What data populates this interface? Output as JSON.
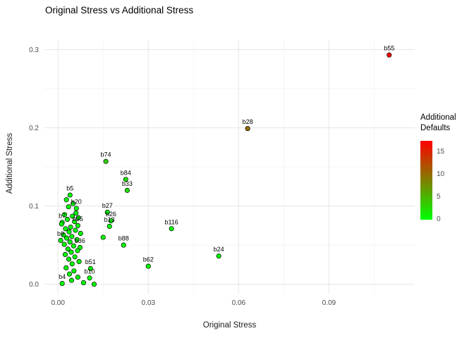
{
  "chart_data": {
    "type": "scatter",
    "title": "Original Stress vs Additional Stress",
    "xlabel": "Original Stress",
    "ylabel": "Additional Stress",
    "xlim": [
      -0.0045,
      0.1185
    ],
    "ylim": [
      -0.012,
      0.312
    ],
    "x_ticks": [
      0,
      0.03,
      0.06,
      0.09
    ],
    "x_tick_labels": [
      "0.00",
      "0.03",
      "0.06",
      "0.09"
    ],
    "x_minor": [
      0.015,
      0.045,
      0.075,
      0.105
    ],
    "y_ticks": [
      0,
      0.1,
      0.2,
      0.3
    ],
    "y_tick_labels": [
      "0.0",
      "0.1",
      "0.2",
      "0.3"
    ],
    "y_minor": [
      0.05,
      0.15,
      0.25
    ],
    "grid": true,
    "legend": {
      "title": "Additional\nDefaults",
      "ticks": [
        0,
        5,
        10,
        15
      ],
      "min": 0,
      "max": 17.5,
      "low_color": "#00FF00",
      "high_color": "#FF0000",
      "position": "right"
    },
    "points": [
      {
        "label": "b55",
        "x": 0.11,
        "y": 0.293,
        "defaults": 17
      },
      {
        "label": "b28",
        "x": 0.063,
        "y": 0.199,
        "defaults": 10
      },
      {
        "label": "b74",
        "x": 0.0159,
        "y": 0.157,
        "defaults": 3
      },
      {
        "label": "b84",
        "x": 0.0225,
        "y": 0.134,
        "defaults": 2
      },
      {
        "label": "b33",
        "x": 0.023,
        "y": 0.12,
        "defaults": 2
      },
      {
        "label": "b5",
        "x": 0.004,
        "y": 0.114,
        "defaults": 0
      },
      {
        "label": "b20",
        "x": 0.0061,
        "y": 0.097,
        "defaults": 0
      },
      {
        "label": "b27",
        "x": 0.0164,
        "y": 0.092,
        "defaults": 0
      },
      {
        "label": "b26",
        "x": 0.0176,
        "y": 0.081,
        "defaults": 0
      },
      {
        "label": "b13",
        "x": 0.0171,
        "y": 0.074,
        "defaults": 0
      },
      {
        "label": "b95",
        "x": 0.0066,
        "y": 0.075,
        "defaults": 0
      },
      {
        "label": "b7",
        "x": 0.0014,
        "y": 0.079,
        "defaults": 0
      },
      {
        "label": "b9",
        "x": 0.0009,
        "y": 0.056,
        "defaults": 0
      },
      {
        "label": "b36",
        "x": 0.0073,
        "y": 0.047,
        "defaults": 0
      },
      {
        "label": "b88",
        "x": 0.0218,
        "y": 0.05,
        "defaults": 0
      },
      {
        "label": "b116",
        "x": 0.0377,
        "y": 0.071,
        "defaults": 0
      },
      {
        "label": "b24",
        "x": 0.0534,
        "y": 0.036,
        "defaults": 0
      },
      {
        "label": "b62",
        "x": 0.03,
        "y": 0.023,
        "defaults": 0
      },
      {
        "label": "b51",
        "x": 0.0108,
        "y": 0.02,
        "defaults": 0
      },
      {
        "label": "b10",
        "x": 0.0105,
        "y": 0.008,
        "defaults": 0
      },
      {
        "label": "b4",
        "x": 0.0014,
        "y": 0.001,
        "defaults": 0
      },
      {
        "label": "",
        "x": 0.0028,
        "y": 0.108,
        "defaults": 0
      },
      {
        "label": "",
        "x": 0.005,
        "y": 0.103,
        "defaults": 0
      },
      {
        "label": "",
        "x": 0.0035,
        "y": 0.099,
        "defaults": 0
      },
      {
        "label": "",
        "x": 0.006,
        "y": 0.091,
        "defaults": 0
      },
      {
        "label": "",
        "x": 0.0022,
        "y": 0.089,
        "defaults": 0
      },
      {
        "label": "",
        "x": 0.0048,
        "y": 0.087,
        "defaults": 0
      },
      {
        "label": "",
        "x": 0.0068,
        "y": 0.085,
        "defaults": 0
      },
      {
        "label": "",
        "x": 0.0031,
        "y": 0.083,
        "defaults": 0
      },
      {
        "label": "",
        "x": 0.0055,
        "y": 0.08,
        "defaults": 0
      },
      {
        "label": "",
        "x": 0.0012,
        "y": 0.077,
        "defaults": 0
      },
      {
        "label": "",
        "x": 0.0042,
        "y": 0.073,
        "defaults": 0
      },
      {
        "label": "",
        "x": 0.0025,
        "y": 0.071,
        "defaults": 0
      },
      {
        "label": "",
        "x": 0.0058,
        "y": 0.069,
        "defaults": 0
      },
      {
        "label": "",
        "x": 0.0037,
        "y": 0.067,
        "defaults": 0
      },
      {
        "label": "",
        "x": 0.0075,
        "y": 0.065,
        "defaults": 0
      },
      {
        "label": "",
        "x": 0.0018,
        "y": 0.063,
        "defaults": 0
      },
      {
        "label": "",
        "x": 0.0046,
        "y": 0.061,
        "defaults": 0
      },
      {
        "label": "",
        "x": 0.0029,
        "y": 0.059,
        "defaults": 0
      },
      {
        "label": "",
        "x": 0.0063,
        "y": 0.057,
        "defaults": 0
      },
      {
        "label": "",
        "x": 0.015,
        "y": 0.06,
        "defaults": 0
      },
      {
        "label": "",
        "x": 0.004,
        "y": 0.054,
        "defaults": 0
      },
      {
        "label": "",
        "x": 0.0021,
        "y": 0.051,
        "defaults": 0
      },
      {
        "label": "",
        "x": 0.0052,
        "y": 0.049,
        "defaults": 0
      },
      {
        "label": "",
        "x": 0.0033,
        "y": 0.045,
        "defaults": 0
      },
      {
        "label": "",
        "x": 0.0065,
        "y": 0.043,
        "defaults": 0
      },
      {
        "label": "",
        "x": 0.0044,
        "y": 0.041,
        "defaults": 0
      },
      {
        "label": "",
        "x": 0.0024,
        "y": 0.038,
        "defaults": 0
      },
      {
        "label": "",
        "x": 0.0056,
        "y": 0.035,
        "defaults": 0
      },
      {
        "label": "",
        "x": 0.0036,
        "y": 0.032,
        "defaults": 0
      },
      {
        "label": "",
        "x": 0.007,
        "y": 0.029,
        "defaults": 0
      },
      {
        "label": "",
        "x": 0.0047,
        "y": 0.026,
        "defaults": 0
      },
      {
        "label": "",
        "x": 0.0027,
        "y": 0.021,
        "defaults": 0
      },
      {
        "label": "",
        "x": 0.0053,
        "y": 0.017,
        "defaults": 0
      },
      {
        "label": "",
        "x": 0.0038,
        "y": 0.013,
        "defaults": 0
      },
      {
        "label": "",
        "x": 0.0066,
        "y": 0.009,
        "defaults": 0
      },
      {
        "label": "",
        "x": 0.0045,
        "y": 0.005,
        "defaults": 0
      },
      {
        "label": "",
        "x": 0.0085,
        "y": 0.002,
        "defaults": 0
      },
      {
        "label": "",
        "x": 0.012,
        "y": 0.0,
        "defaults": 0
      }
    ]
  }
}
